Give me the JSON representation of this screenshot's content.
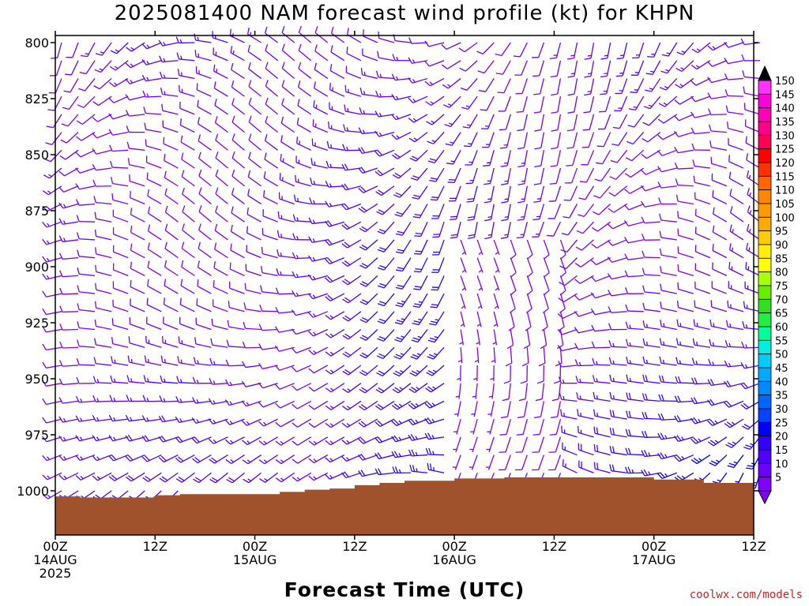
{
  "chart_data": {
    "type": "wind-barb-profile",
    "title": "2025081400 NAM forecast wind profile (kt) for KHPN",
    "xlabel": "Forecast Time (UTC)",
    "ylabel": "",
    "y_axis": {
      "reversed": true,
      "ylim": [
        1000,
        800
      ],
      "ticks": [
        800,
        825,
        850,
        875,
        900,
        925,
        950,
        975,
        1000
      ]
    },
    "x_axis": {
      "xlim_hours": [
        0,
        84
      ],
      "tick_hours": [
        0,
        12,
        24,
        36,
        48,
        60,
        72,
        84
      ],
      "ticks": [
        {
          "time": "00Z",
          "date": "14AUG",
          "year": "2025"
        },
        {
          "time": "12Z",
          "date": "",
          "year": ""
        },
        {
          "time": "00Z",
          "date": "15AUG",
          "year": ""
        },
        {
          "time": "12Z",
          "date": "",
          "year": ""
        },
        {
          "time": "00Z",
          "date": "16AUG",
          "year": ""
        },
        {
          "time": "12Z",
          "date": "",
          "year": ""
        },
        {
          "time": "00Z",
          "date": "17AUG",
          "year": ""
        },
        {
          "time": "12Z",
          "date": "",
          "year": ""
        }
      ]
    },
    "colorbar": {
      "unit": "kt",
      "levels": [
        5,
        10,
        15,
        20,
        25,
        30,
        35,
        40,
        45,
        50,
        55,
        60,
        65,
        70,
        75,
        80,
        85,
        90,
        95,
        100,
        105,
        110,
        115,
        120,
        125,
        130,
        135,
        140,
        145,
        150
      ],
      "colors": [
        "#8000ff",
        "#6a00ff",
        "#5000ff",
        "#3300ff",
        "#0000ff",
        "#0044ff",
        "#0066ff",
        "#0088ff",
        "#00aaff",
        "#00ccff",
        "#00eedd",
        "#00ff99",
        "#22ee44",
        "#33dd22",
        "#66ee00",
        "#aaff00",
        "#ffff00",
        "#ffee00",
        "#ffcc00",
        "#ffaa00",
        "#ff9900",
        "#ff8800",
        "#ff6600",
        "#ff3300",
        "#ff0000",
        "#ff0055",
        "#ff0088",
        "#ff00bb",
        "#ff00dd",
        "#ff33ff"
      ],
      "under_color": "#8000ff",
      "over_color": "#000000"
    },
    "terrain_color": "#a0522d",
    "surface_pressure_mb": [
      [
        0,
        1002.5
      ],
      [
        3,
        1003.0
      ],
      [
        12,
        1002.0
      ],
      [
        15,
        1001.5
      ],
      [
        24,
        1001.5
      ],
      [
        27,
        1000.5
      ],
      [
        30,
        999.5
      ],
      [
        33,
        999.0
      ],
      [
        36,
        997.5
      ],
      [
        39,
        996.5
      ],
      [
        42,
        995.5
      ],
      [
        48,
        994.5
      ],
      [
        54,
        994.0
      ],
      [
        60,
        994.0
      ],
      [
        66,
        994.0
      ],
      [
        72,
        995.0
      ],
      [
        78,
        996.5
      ],
      [
        84,
        998.5
      ]
    ]
  },
  "credit": "coolwx.com/models"
}
